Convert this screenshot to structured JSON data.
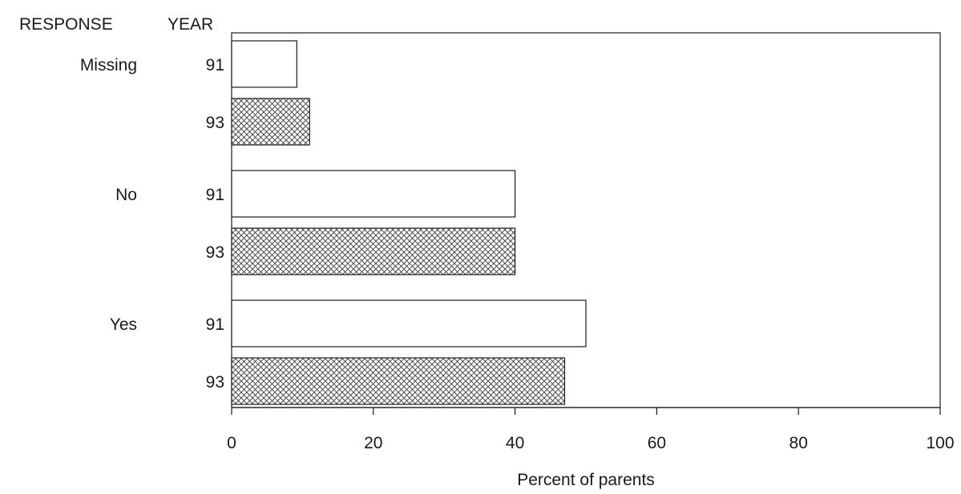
{
  "chart_data": {
    "type": "bar",
    "orientation": "horizontal",
    "headers": {
      "response": "RESPONSE",
      "year": "YEAR"
    },
    "groups": [
      {
        "label": "Missing",
        "bars": [
          {
            "year": "91",
            "value": 9.2
          },
          {
            "year": "93",
            "value": 11
          }
        ]
      },
      {
        "label": "No",
        "bars": [
          {
            "year": "91",
            "value": 40
          },
          {
            "year": "93",
            "value": 40
          }
        ]
      },
      {
        "label": "Yes",
        "bars": [
          {
            "year": "91",
            "value": 50
          },
          {
            "year": "93",
            "value": 47
          }
        ]
      }
    ],
    "xlabel": "Percent of parents",
    "xlim": [
      0,
      100
    ],
    "xticks": [
      "0",
      "20",
      "40",
      "60",
      "80",
      "100"
    ],
    "styles": {
      "91": "plain",
      "93": "crosshatch"
    },
    "colors": {
      "stroke": "#1a1a1a",
      "fill": "#ffffff",
      "hatch": "#3a3a3a"
    },
    "grid": false,
    "legend": "none"
  }
}
